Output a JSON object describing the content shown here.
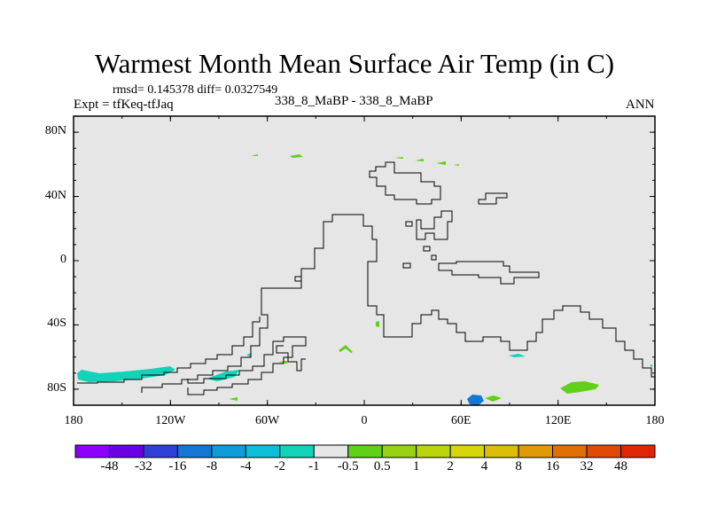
{
  "title": "Warmest Month Mean Surface Air Temp (in C)",
  "stats": "rmsd= 0.145378  diff= 0.0327549",
  "left_label": "Expt = tfKeq-tfJaq",
  "center_label": "338_8_MaBP - 338_8_MaBP",
  "right_label": "ANN",
  "map": {
    "lon_range": [
      -180,
      180
    ],
    "lat_range": [
      -90,
      90
    ],
    "background": "#e6e6e6",
    "y_ticks": [
      {
        "lat": 80,
        "label": "80N"
      },
      {
        "lat": 40,
        "label": "40N"
      },
      {
        "lat": 0,
        "label": "0"
      },
      {
        "lat": -40,
        "label": "40S"
      },
      {
        "lat": -80,
        "label": "80S"
      }
    ],
    "x_ticks": [
      {
        "lon": -180,
        "label": "180"
      },
      {
        "lon": -120,
        "label": "120W"
      },
      {
        "lon": -60,
        "label": "60W"
      },
      {
        "lon": 0,
        "label": "0"
      },
      {
        "lon": 60,
        "label": "60E"
      },
      {
        "lon": 120,
        "label": "120E"
      },
      {
        "lon": 180,
        "label": "180"
      }
    ]
  },
  "colorbar": {
    "colors": [
      "#8c00ff",
      "#6a00e6",
      "#2e3fd6",
      "#1477d4",
      "#0f9cd8",
      "#0cbfd8",
      "#12d3b8",
      "#e6e6e6",
      "#5fd119",
      "#96d213",
      "#bbd50c",
      "#d6d50a",
      "#dcbd08",
      "#e09a06",
      "#e06f05",
      "#e04a04",
      "#e02704"
    ],
    "labels": [
      "-48",
      "-32",
      "-16",
      "-8",
      "-4",
      "-2",
      "-1",
      "-0.5",
      "0.5",
      "1",
      "2",
      "4",
      "8",
      "16",
      "32",
      "48"
    ]
  }
}
